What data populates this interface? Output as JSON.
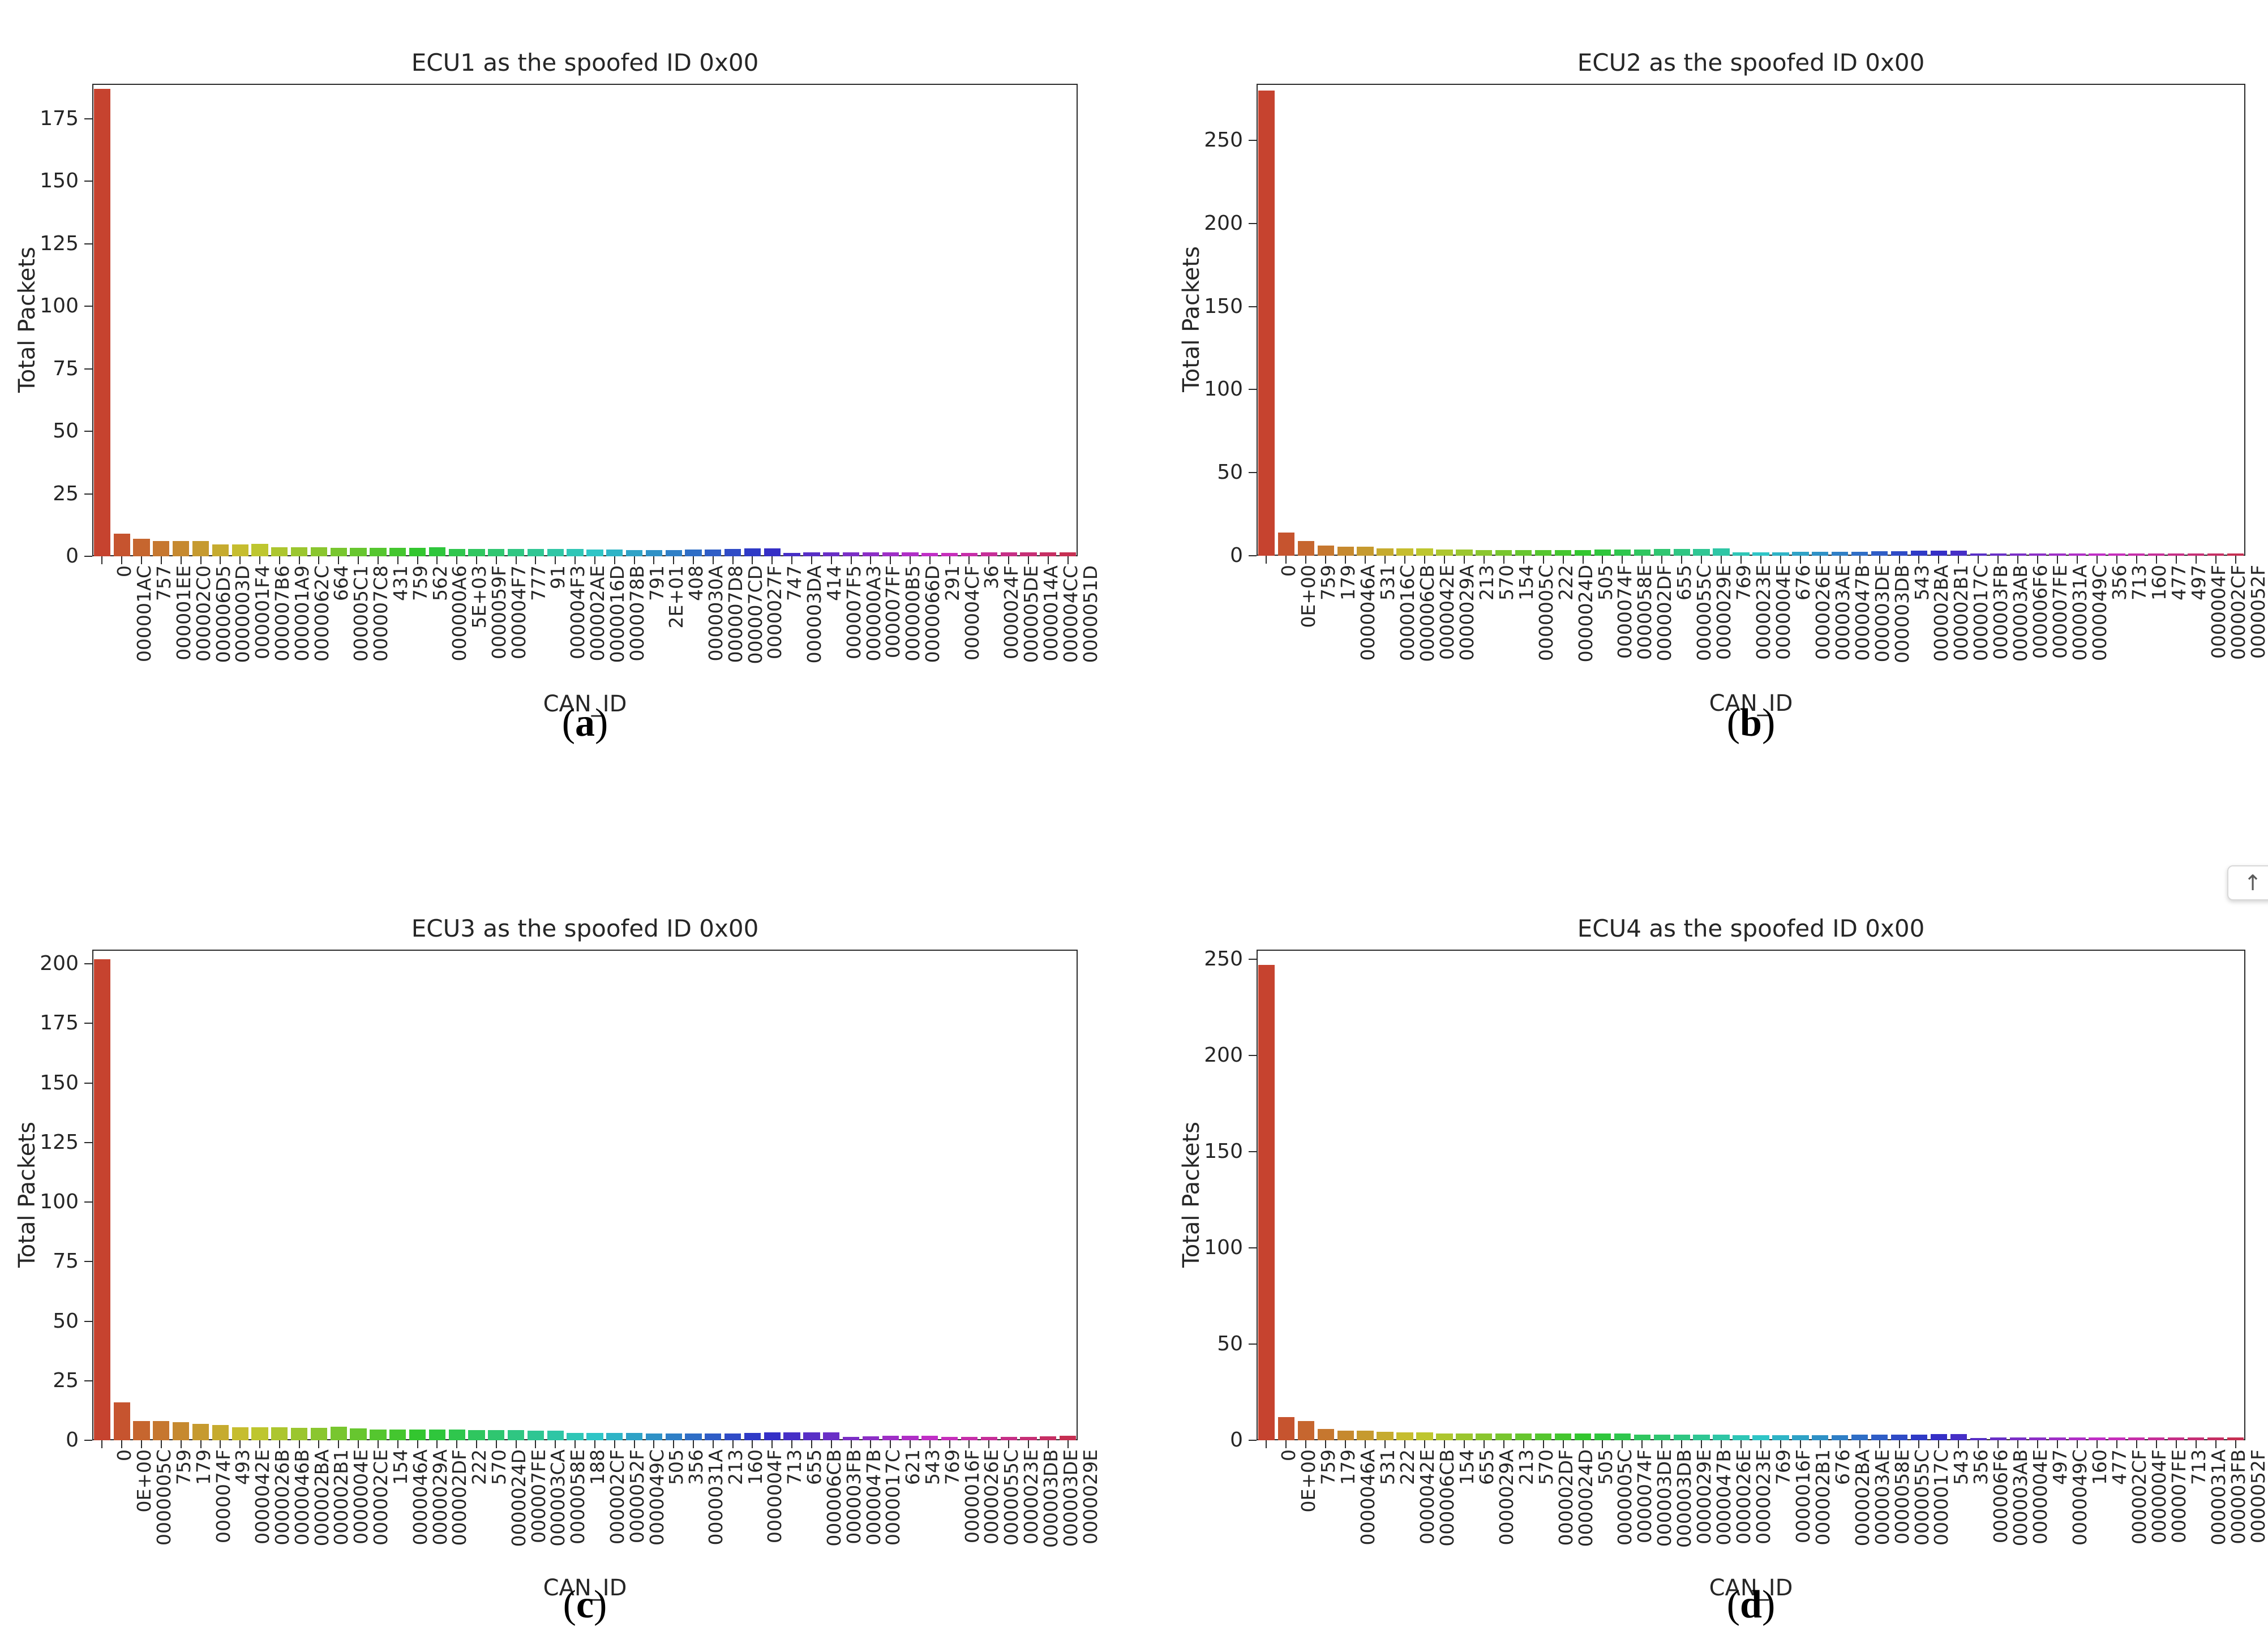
{
  "figure": {
    "background": "#ffffff",
    "text_color": "#262626",
    "bar_palette": {
      "hue_start": 8,
      "hue_end": 346,
      "saturation": 62,
      "lightness": 48,
      "first_bar_color": "#c8432e"
    }
  },
  "scroll_top_button": {
    "icon": "up-arrow",
    "symbol": "↑"
  },
  "chart_data": [
    {
      "type": "bar",
      "title": "ECU1 as the spoofed ID 0x00",
      "xlabel": "CAN_ID",
      "ylabel": "Total Packets",
      "caption": {
        "open": "(",
        "letter": "a",
        "close": ")"
      },
      "ylim": [
        0,
        189
      ],
      "yticks": [
        0,
        25,
        50,
        75,
        100,
        125,
        150,
        175
      ],
      "grid": false,
      "legend": "none",
      "categories": [
        "0",
        "000001AC",
        "757",
        "000001EE",
        "000002C0",
        "000006D5",
        "0000003D",
        "000001F4",
        "000007B6",
        "000001A9",
        "0000062C",
        "664",
        "000005C1",
        "000007C8",
        "431",
        "759",
        "562",
        "000000A6",
        "5E+03",
        "0000059F",
        "000004F7",
        "777",
        "91",
        "000004F3",
        "000002AE",
        "0000016D",
        "0000078B",
        "791",
        "2E+01",
        "408",
        "0000030A",
        "000007D8",
        "000007CD",
        "0000027F",
        "747",
        "000003DA",
        "414",
        "000007F5",
        "000000A3",
        "000007FF",
        "000000B5",
        "0000066D",
        "291",
        "000004CF",
        "36",
        "0000024F",
        "000005DE",
        "0000014A",
        "000004CC",
        "0000051D"
      ],
      "values": [
        187,
        9,
        7,
        6,
        6,
        6,
        4.8,
        4.8,
        5,
        3.6,
        3.6,
        3.6,
        3.3,
        3.3,
        3.3,
        3.3,
        3.3,
        3.6,
        3,
        3,
        3,
        3,
        3,
        2.9,
        2.9,
        2.8,
        2.8,
        2.5,
        2.5,
        2.6,
        2.8,
        2.8,
        3,
        3.2,
        3.2,
        1.3,
        1.5,
        1.5,
        1.5,
        1.6,
        1.6,
        1.5,
        1.4,
        1.4,
        1.4,
        1.5,
        1.5,
        1.5,
        1.5,
        1.5
      ]
    },
    {
      "type": "bar",
      "title": "ECU2 as the spoofed ID 0x00",
      "xlabel": "CAN_ID",
      "ylabel": "Total Packets",
      "caption": {
        "open": "(",
        "letter": "b",
        "close": ")"
      },
      "ylim": [
        0,
        284
      ],
      "yticks": [
        0,
        50,
        100,
        150,
        200,
        250
      ],
      "grid": false,
      "legend": "none",
      "categories": [
        "0",
        "0E+00",
        "759",
        "179",
        "0000046A",
        "531",
        "0000016C",
        "000006CB",
        "0000042E",
        "0000029A",
        "213",
        "570",
        "154",
        "0000005C",
        "222",
        "0000024D",
        "505",
        "0000074F",
        "0000058E",
        "000002DF",
        "655",
        "0000055C",
        "0000029E",
        "769",
        "0000023E",
        "0000004E",
        "676",
        "0000026E",
        "000003AE",
        "0000047B",
        "000003DE",
        "000003DB",
        "543",
        "000002BA",
        "000002B1",
        "0000017C",
        "000003FB",
        "000003AB",
        "000006F6",
        "000007FE",
        "0000031A",
        "0000049C",
        "356",
        "713",
        "160",
        "477",
        "497",
        "0000004F",
        "000002CF",
        "0000052F"
      ],
      "values": [
        280,
        14,
        9,
        6,
        5.5,
        5.5,
        4.5,
        4.5,
        4.5,
        3.8,
        3.8,
        3.5,
        3.5,
        3.5,
        3.5,
        3.5,
        3.5,
        3.8,
        3.8,
        3.8,
        4,
        4,
        4.2,
        4.5,
        2.2,
        2.2,
        2.2,
        2.3,
        2.4,
        2.4,
        2.5,
        2.6,
        2.8,
        3,
        3.2,
        3.2,
        1.3,
        1.5,
        1.5,
        1.5,
        1.5,
        1.5,
        1.4,
        1.4,
        1.4,
        1.4,
        1.4,
        1.4,
        1.4,
        1.5
      ]
    },
    {
      "type": "bar",
      "title": "ECU3 as the spoofed ID 0x00",
      "xlabel": "CAN_ID",
      "ylabel": "Total Packets",
      "caption": {
        "open": "(",
        "letter": "c",
        "close": ")"
      },
      "ylim": [
        0,
        206
      ],
      "yticks": [
        0,
        25,
        50,
        75,
        100,
        125,
        150,
        175,
        200
      ],
      "grid": false,
      "legend": "none",
      "categories": [
        "0",
        "0E+00",
        "0000005C",
        "759",
        "179",
        "0000074F",
        "493",
        "0000042E",
        "0000026B",
        "0000046B",
        "000002BA",
        "000002B1",
        "0000004E",
        "000002CE",
        "154",
        "0000046A",
        "0000029A",
        "000002DF",
        "222",
        "570",
        "0000024D",
        "000007FE",
        "000003CA",
        "0000058E",
        "188",
        "000002CF",
        "0000052F",
        "0000049C",
        "505",
        "356",
        "0000031A",
        "213",
        "160",
        "0000004F",
        "713",
        "655",
        "000006CB",
        "000003FB",
        "0000047B",
        "0000017C",
        "621",
        "543",
        "769",
        "0000016F",
        "0000026E",
        "0000055C",
        "0000023E",
        "000003DB",
        "000003DE",
        "0000029E"
      ],
      "values": [
        202,
        16,
        8,
        8,
        7.5,
        7,
        6.5,
        5.5,
        5.5,
        5.5,
        5.3,
        5.3,
        5.8,
        5,
        4.5,
        4.5,
        4.5,
        4.5,
        4.4,
        4.2,
        4.2,
        4.2,
        4,
        4,
        3,
        3,
        3,
        3,
        2.8,
        2.8,
        2.8,
        2.8,
        2.8,
        3.2,
        3.4,
        3.4,
        3.4,
        3.4,
        1.5,
        1.6,
        1.8,
        1.8,
        1.8,
        1.5,
        1.5,
        1.5,
        1.5,
        1.5,
        1.6,
        2
      ]
    },
    {
      "type": "bar",
      "title": "ECU4 as the spoofed ID 0x00",
      "xlabel": "CAN_ID",
      "ylabel": "Total Packets",
      "caption": {
        "open": "(",
        "letter": "d",
        "close": ")"
      },
      "ylim": [
        0,
        255
      ],
      "yticks": [
        0,
        50,
        100,
        150,
        200,
        250
      ],
      "grid": false,
      "legend": "none",
      "categories": [
        "0",
        "0E+00",
        "759",
        "179",
        "0000046A",
        "531",
        "222",
        "0000042E",
        "000006CB",
        "154",
        "655",
        "0000029A",
        "213",
        "570",
        "000002DF",
        "0000024D",
        "505",
        "0000005C",
        "0000074F",
        "000003DE",
        "000003DB",
        "0000029E",
        "0000047B",
        "0000026E",
        "0000023E",
        "769",
        "0000016F",
        "000002B1",
        "676",
        "000002BA",
        "000003AE",
        "0000058E",
        "0000055C",
        "0000017C",
        "543",
        "356",
        "000006F6",
        "000003AB",
        "0000004E",
        "497",
        "0000049C",
        "160",
        "477",
        "000002CF",
        "0000004F",
        "000007FE",
        "713",
        "0000031A",
        "000003FB",
        "0000052F"
      ],
      "values": [
        247,
        12,
        10,
        6,
        5,
        5,
        4.5,
        4,
        4,
        3.5,
        3.5,
        3.5,
        3.5,
        3.5,
        3.5,
        3.5,
        3.5,
        3.5,
        3.5,
        3,
        3,
        3,
        3,
        3,
        2.6,
        2.6,
        2.6,
        2.6,
        2.6,
        2.7,
        2.8,
        2.8,
        2.9,
        3,
        3.2,
        3.2,
        1.3,
        1.5,
        1.5,
        1.5,
        1.5,
        1.5,
        1.4,
        1.4,
        1.4,
        1.4,
        1.4,
        1.4,
        1.4,
        1.4
      ]
    }
  ]
}
